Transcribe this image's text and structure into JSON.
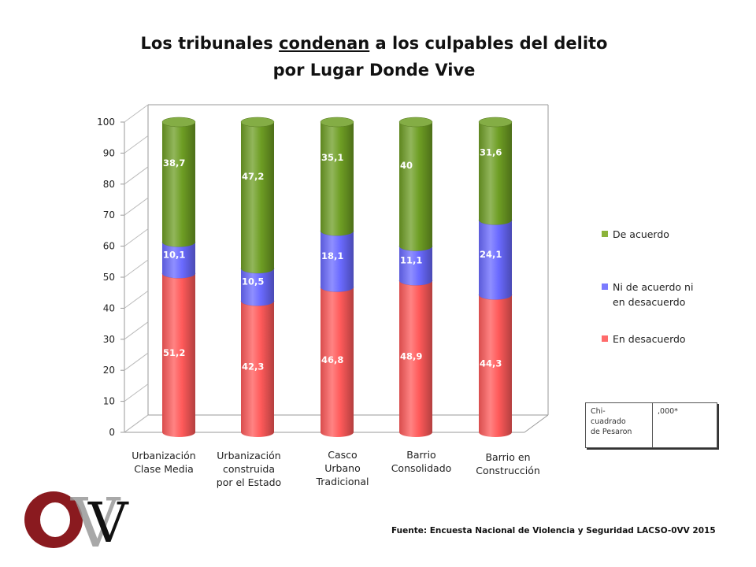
{
  "title_line1_pre": "Los tribunales ",
  "title_line1_underlined": "condenan",
  "title_line1_post": " a los culpables del delito",
  "title_line2": "por Lugar Donde Vive",
  "chart_data": {
    "type": "bar",
    "stacked": true,
    "style": "3d-cylinder",
    "categories": [
      "Urbanización Clase Media",
      "Urbanización construida por el Estado",
      "Casco Urbano Tradicional",
      "Barrio Consolidado",
      "Barrio en Construcción"
    ],
    "category_lines": [
      [
        "Urbanización",
        "Clase Media"
      ],
      [
        "Urbanización",
        "construida",
        "por el Estado"
      ],
      [
        "Casco",
        "Urbano",
        "Tradicional"
      ],
      [
        "Barrio",
        "Consolidado"
      ],
      [
        "Barrio en",
        "Construcción"
      ]
    ],
    "series": [
      {
        "name": "En desacuerdo",
        "color": "#ff5a5a",
        "values": [
          51.2,
          42.3,
          46.8,
          48.9,
          44.3
        ],
        "labels": [
          "51,2",
          "42,3",
          "46,8",
          "48,9",
          "44,3"
        ]
      },
      {
        "name": "Ni de acuerdo ni en desacuerdo",
        "color": "#6a6aff",
        "values": [
          10.1,
          10.5,
          18.1,
          11.1,
          24.1
        ],
        "labels": [
          "10,1",
          "10,5",
          "18,1",
          "11,1",
          "24,1"
        ]
      },
      {
        "name": "De acuerdo",
        "color": "#6e9e24",
        "values": [
          38.7,
          47.2,
          35.1,
          40,
          31.6
        ],
        "labels": [
          "38,7",
          "47,2",
          "35,1",
          "40",
          "31,6"
        ]
      }
    ],
    "ylim": [
      0,
      100
    ],
    "yticks": [
      0,
      10,
      20,
      30,
      40,
      50,
      60,
      70,
      80,
      90,
      100
    ],
    "grid": false,
    "legend_position": "right"
  },
  "legend": {
    "items": [
      {
        "lines": [
          "De acuerdo"
        ],
        "color": "#8cb33a"
      },
      {
        "lines": [
          "Ni de acuerdo ni",
          "en desacuerdo"
        ],
        "color": "#7b7bff"
      },
      {
        "lines": [
          "En desacuerdo"
        ],
        "color": "#ff6b6b"
      }
    ]
  },
  "stats_table": {
    "label": "Chi- cuadrado de Pesaron",
    "label_lines": [
      "Chi-",
      "cuadrado",
      "de Pesaron"
    ],
    "value": ",000*"
  },
  "source": "Fuente: Encuesta Nacional de Violencia y Seguridad LACSO-0VV 2015",
  "logo": {
    "letters": "OVV",
    "color_o": "#8a1a1f",
    "color_vv": "#111111"
  }
}
